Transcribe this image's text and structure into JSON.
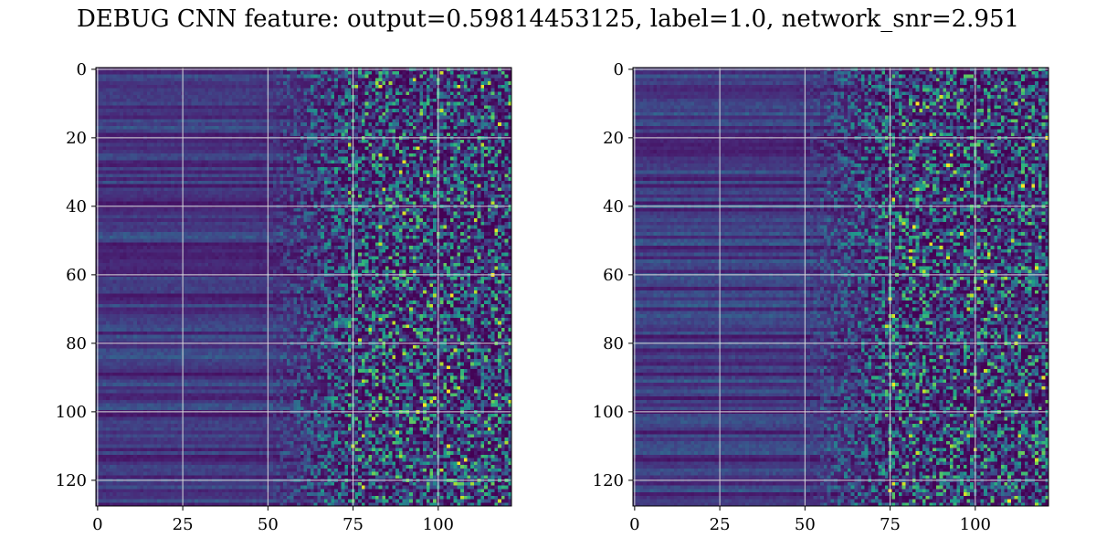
{
  "chart_data": [
    {
      "type": "heatmap",
      "title": "DEBUG CNN feature: output=0.59814453125, label=1.0, network_snr=2.951",
      "subtitle": "",
      "xlabel": "",
      "ylabel": "",
      "colormap": "viridis",
      "x_range": [
        -0.5,
        121.5
      ],
      "y_range": [
        127.5,
        -0.5
      ],
      "x_ticks": [
        0,
        25,
        50,
        75,
        100
      ],
      "y_ticks": [
        0,
        20,
        40,
        60,
        80,
        100,
        120
      ],
      "grid": true,
      "grid_color": "#d9d9d9"
    },
    {
      "type": "heatmap",
      "title": "",
      "subtitle": "",
      "xlabel": "",
      "ylabel": "",
      "colormap": "viridis",
      "x_range": [
        -0.5,
        121.5
      ],
      "y_range": [
        127.5,
        -0.5
      ],
      "x_ticks": [
        0,
        25,
        50,
        75,
        100
      ],
      "y_ticks": [
        0,
        20,
        40,
        60,
        80,
        100,
        120
      ],
      "grid": true,
      "grid_color": "#d9d9d9"
    }
  ],
  "colors": {
    "viridis_low": "#440154",
    "viridis_mid": "#21918c",
    "viridis_high": "#fde725"
  }
}
